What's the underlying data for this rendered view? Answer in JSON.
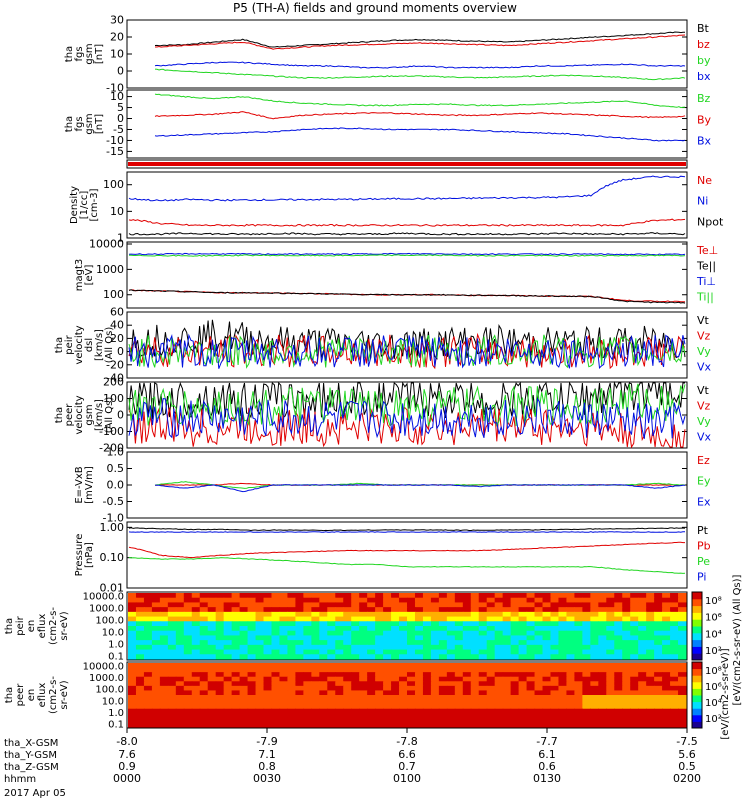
{
  "title": "P5 (TH-A) fields and ground moments overview",
  "colors": {
    "black": "#000000",
    "red": "#e00000",
    "green": "#22d622",
    "blue": "#0010e0"
  },
  "chart_data": {
    "type": "line",
    "time_axis": {
      "start": "0000",
      "end": "0200",
      "date": "2017 Apr 05"
    },
    "panels": [
      {
        "id": "fgs_gsm",
        "ylabel": [
          "tha",
          "fgs",
          "gsm",
          "[nT]"
        ],
        "ylim": [
          -10,
          30
        ],
        "yticks": [
          "30",
          "20",
          "10",
          "0",
          "-10"
        ],
        "series": [
          {
            "name": "Bt",
            "color": "black",
            "values": [
              15,
              15.5,
              17,
              18.5,
              14,
              15,
              16,
              17,
              18,
              18.5,
              18,
              17.5,
              17,
              18,
              19,
              20,
              21,
              22,
              23
            ]
          },
          {
            "name": "bz",
            "color": "red",
            "values": [
              14,
              15,
              16,
              17,
              13,
              14,
              15,
              15.5,
              16,
              16.5,
              16,
              15.5,
              15,
              16,
              17,
              18,
              19,
              20,
              21
            ]
          },
          {
            "name": "by",
            "color": "green",
            "values": [
              1,
              0,
              -1,
              -2,
              -3,
              -4,
              -4,
              -3.5,
              -3,
              -3,
              -3.5,
              -4,
              -3.5,
              -3,
              -2.5,
              -3,
              -4,
              -5,
              -4
            ]
          },
          {
            "name": "bx",
            "color": "blue",
            "values": [
              3,
              4,
              5,
              5,
              4,
              3,
              3,
              2,
              2,
              3,
              2,
              2,
              2,
              3,
              3,
              3.5,
              4,
              3,
              3
            ]
          }
        ]
      },
      {
        "id": "fgs_gsm_B",
        "ylabel": [
          "tha",
          "fgs",
          "gsm",
          "[nT]"
        ],
        "ylim": [
          -18,
          13
        ],
        "yticks": [
          "10",
          "5",
          "0",
          "-5",
          "-10",
          "-15"
        ],
        "series": [
          {
            "name": "Bz",
            "color": "green",
            "values": [
              11,
              10,
              9,
              10,
              8,
              7,
              6.5,
              6,
              6,
              6.5,
              6.5,
              6,
              6,
              6.5,
              7,
              7.5,
              8,
              6,
              5
            ]
          },
          {
            "name": "By",
            "color": "red",
            "values": [
              1,
              1.5,
              2,
              3,
              0,
              1.5,
              2,
              2.5,
              2.5,
              2,
              1.5,
              1.5,
              2,
              2.5,
              2,
              1.5,
              1,
              0.5,
              1
            ]
          },
          {
            "name": "Bx",
            "color": "blue",
            "values": [
              -8,
              -7.5,
              -7,
              -6.5,
              -6,
              -5,
              -4.5,
              -4.5,
              -5,
              -5,
              -5,
              -5.5,
              -6,
              -6.5,
              -7,
              -8,
              -9,
              -10,
              -10
            ]
          }
        ]
      },
      {
        "id": "moments",
        "ylabel": [
          "Density",
          "[1/cc]",
          "[cm-3]"
        ],
        "ylim": [
          1,
          300
        ],
        "yscale": "log",
        "yticks": [
          "100",
          "10",
          "1"
        ],
        "series": [
          {
            "name": "Ne",
            "color": "red",
            "values": [
              5,
              3.5,
              3,
              3,
              3,
              3,
              3,
              3,
              3,
              3,
              3,
              3,
              3,
              3,
              3,
              3,
              3,
              4.5,
              5
            ]
          },
          {
            "name": "Ni",
            "color": "blue",
            "values": [
              30,
              25,
              28,
              26,
              27,
              27,
              28,
              28,
              29,
              30,
              30,
              31,
              32,
              33,
              34,
              40,
              150,
              200,
              200
            ]
          },
          {
            "name": "Npot",
            "color": "black",
            "values": [
              1.4,
              1.4,
              1.5,
              1.4,
              1.4,
              1.5,
              1.4,
              1.4,
              1.4,
              1.5,
              1.4,
              1.4,
              1.4,
              1.4,
              1.5,
              1.4,
              1.4,
              1.5,
              1.4
            ]
          }
        ]
      },
      {
        "id": "temp",
        "ylabel": [
          "magt3",
          "[eV]"
        ],
        "ylim": [
          30,
          12000
        ],
        "yscale": "log",
        "yticks": [
          "10000",
          "1000",
          "100"
        ],
        "series": [
          {
            "name": "Te⊥",
            "color": "red",
            "values": [
              150,
              140,
              130,
              120,
              120,
              115,
              110,
              105,
              100,
              100,
              100,
              95,
              95,
              90,
              88,
              85,
              60,
              55,
              55
            ]
          },
          {
            "name": "Te||",
            "color": "black",
            "values": [
              150,
              140,
              130,
              120,
              120,
              115,
              110,
              105,
              100,
              100,
              100,
              95,
              95,
              90,
              88,
              85,
              55,
              50,
              48
            ]
          },
          {
            "name": "Ti⊥",
            "color": "blue",
            "values": [
              4000,
              4000,
              4100,
              4100,
              4000,
              4000,
              4000,
              4000,
              4100,
              4100,
              4100,
              4000,
              4000,
              4000,
              4000,
              4000,
              3900,
              3900,
              3900
            ]
          },
          {
            "name": "Ti||",
            "color": "green",
            "values": [
              3500,
              3500,
              3400,
              3500,
              3600,
              3500,
              3500,
              3500,
              3600,
              3600,
              3600,
              3500,
              3500,
              3500,
              3400,
              3500,
              3500,
              3500,
              3500
            ]
          }
        ]
      },
      {
        "id": "velocity_dsl",
        "ylabel": [
          "tha",
          "peir",
          "velocity",
          "dsl",
          "[km/s]",
          "(All Qs)"
        ],
        "ylim": [
          -40,
          60
        ],
        "yticks": [
          "60",
          "40",
          "20",
          "0",
          "-20",
          "-40"
        ],
        "series": [
          {
            "name": "Vt",
            "color": "black",
            "values": [
              15,
              18,
              20,
              25,
              20,
              15,
              14,
              13,
              12,
              12,
              14,
              15,
              15,
              14,
              13,
              12,
              14,
              14,
              13
            ]
          },
          {
            "name": "Vz",
            "color": "red",
            "values": [
              3,
              2,
              1,
              0,
              0,
              1,
              0,
              0,
              1,
              0,
              0,
              1,
              0,
              0,
              1,
              0,
              0,
              1,
              0
            ]
          },
          {
            "name": "Vy",
            "color": "green",
            "values": [
              0,
              1,
              0,
              -2,
              0,
              0,
              1,
              0,
              -1,
              0,
              1,
              0,
              0,
              0,
              1,
              0,
              0,
              0,
              0
            ]
          },
          {
            "name": "Vx",
            "color": "blue",
            "values": [
              0,
              -1,
              0,
              -3,
              0,
              0,
              -1,
              0,
              0,
              1,
              0,
              -1,
              0,
              0,
              0,
              -1,
              0,
              0,
              0
            ]
          }
        ]
      },
      {
        "id": "velocity_gsm",
        "ylabel": [
          "tha",
          "peer",
          "velocity",
          "gsm",
          "[km/s]",
          "(All Qs)"
        ],
        "ylim": [
          -200,
          200
        ],
        "yticks": [
          "200",
          "100",
          "0",
          "-100",
          "-200"
        ],
        "series": [
          {
            "name": "Vt",
            "color": "black",
            "values": [
              90,
              95,
              100,
              100,
              95,
              95,
              100,
              100,
              105,
              105,
              100,
              100,
              100,
              100,
              105,
              110,
              150,
              150,
              140
            ]
          },
          {
            "name": "Vz",
            "color": "red",
            "values": [
              -60,
              -70,
              -80,
              -80,
              -75,
              -75,
              -75,
              -70,
              -70,
              -70,
              -70,
              -65,
              -65,
              -65,
              -70,
              -80,
              -110,
              -130,
              -140
            ]
          },
          {
            "name": "Vy",
            "color": "green",
            "values": [
              50,
              45,
              40,
              45,
              45,
              45,
              50,
              50,
              50,
              50,
              50,
              50,
              50,
              55,
              55,
              60,
              80,
              80,
              80
            ]
          },
          {
            "name": "Vx",
            "color": "blue",
            "values": [
              -10,
              -15,
              -20,
              -20,
              -25,
              -25,
              -25,
              -25,
              -20,
              -20,
              -20,
              -20,
              -20,
              -20,
              -25,
              -25,
              -40,
              -50,
              -40
            ]
          }
        ]
      },
      {
        "id": "efield",
        "ylabel": [
          "E=-VxB",
          "[mV/m]"
        ],
        "ylim": [
          -1,
          1
        ],
        "yticks": [
          "1.0",
          "0.5",
          "0.0",
          "-0.5",
          "-1.0"
        ],
        "series": [
          {
            "name": "Ez",
            "color": "red",
            "values": [
              0,
              0,
              0,
              0.05,
              0,
              0,
              0,
              0,
              0,
              0,
              0,
              0,
              0,
              0,
              0,
              0,
              0,
              0,
              0
            ]
          },
          {
            "name": "Ey",
            "color": "green",
            "values": [
              0,
              0.1,
              0,
              -0.1,
              0,
              0,
              0,
              0.05,
              0,
              0,
              0,
              0,
              0,
              0,
              0,
              0,
              0,
              0.05,
              0
            ]
          },
          {
            "name": "Ex",
            "color": "blue",
            "values": [
              0,
              -0.1,
              0,
              -0.2,
              0,
              0,
              0,
              0,
              0,
              0,
              0,
              -0.05,
              0,
              0,
              0,
              0,
              0,
              -0.1,
              0
            ]
          }
        ]
      },
      {
        "id": "pressure",
        "ylabel": [
          "Pressure",
          "[nPa]"
        ],
        "ylim": [
          0.01,
          1.5
        ],
        "yscale": "log",
        "yticks": [
          "1.00",
          "0.10",
          "0.01"
        ],
        "series": [
          {
            "name": "Pt",
            "color": "black",
            "values": [
              0.95,
              0.9,
              0.85,
              0.85,
              0.8,
              0.82,
              0.8,
              0.8,
              0.82,
              0.82,
              0.82,
              0.8,
              0.82,
              0.82,
              0.85,
              0.88,
              0.9,
              0.92,
              0.95
            ]
          },
          {
            "name": "Pb",
            "color": "red",
            "values": [
              0.22,
              0.12,
              0.1,
              0.12,
              0.14,
              0.15,
              0.16,
              0.17,
              0.17,
              0.17,
              0.17,
              0.17,
              0.18,
              0.2,
              0.22,
              0.24,
              0.27,
              0.3,
              0.32
            ]
          },
          {
            "name": "Pe",
            "color": "green",
            "values": [
              0.1,
              0.09,
              0.09,
              0.1,
              0.09,
              0.08,
              0.07,
              0.06,
              0.06,
              0.05,
              0.05,
              0.05,
              0.05,
              0.05,
              0.05,
              0.05,
              0.04,
              0.035,
              0.03
            ]
          },
          {
            "name": "Pi",
            "color": "blue",
            "values": [
              0.7,
              0.7,
              0.7,
              0.7,
              0.7,
              0.7,
              0.7,
              0.7,
              0.7,
              0.7,
              0.7,
              0.7,
              0.7,
              0.7,
              0.7,
              0.7,
              0.7,
              0.7,
              0.7
            ]
          }
        ]
      }
    ],
    "spectrograms": [
      {
        "id": "peir",
        "type": "heatmap",
        "ylabel": [
          "tha",
          "peir",
          "en",
          "eflux",
          "(cm2-s-",
          "sr-eV)"
        ],
        "yticks": [
          "10000.0",
          "1000.0",
          "100.0",
          "10.0",
          "1.0",
          "0.1"
        ]
      },
      {
        "id": "peer",
        "type": "heatmap",
        "ylabel": [
          "tha",
          "peer",
          "en",
          "eflux",
          "(cm2-s-",
          "sr-eV)"
        ],
        "yticks": [
          "10000.0",
          "1000.0",
          "100.0",
          "10.0",
          "1.0",
          "0.1"
        ]
      }
    ],
    "colorbar_label": "[eV/(cm2-s-sr-eV)]",
    "colorbar_label_2": "[eV/(cm2-s-sr-eV) (All Qs)]",
    "colorbar_ticks": [
      "10⁸",
      "10⁶",
      "10⁴",
      "10²",
      "10⁸",
      "10⁶",
      "10⁴",
      "10²"
    ],
    "colormap": [
      "#1a0090",
      "#0000ff",
      "#0080ff",
      "#00e0ff",
      "#00ff80",
      "#80ff00",
      "#ffff00",
      "#ffb000",
      "#ff5000",
      "#d00000"
    ],
    "ephemeris": {
      "rows": [
        "tha_X-GSM",
        "tha_Y-GSM",
        "tha_Z-GSM",
        "hhmm"
      ],
      "ticks_x": [
        "-8.0",
        "-7.9",
        "-7.8",
        "-7.7",
        "-7.5"
      ],
      "tha_X": [
        "7.6",
        "7.1",
        "6.6",
        "6.1",
        "5.6"
      ],
      "tha_Y": [
        "0.9",
        "0.8",
        "0.7",
        "0.6",
        "0.5"
      ],
      "hhmm": [
        "0000",
        "0030",
        "0100",
        "0130",
        "0200"
      ],
      "date": "2017 Apr 05"
    }
  }
}
